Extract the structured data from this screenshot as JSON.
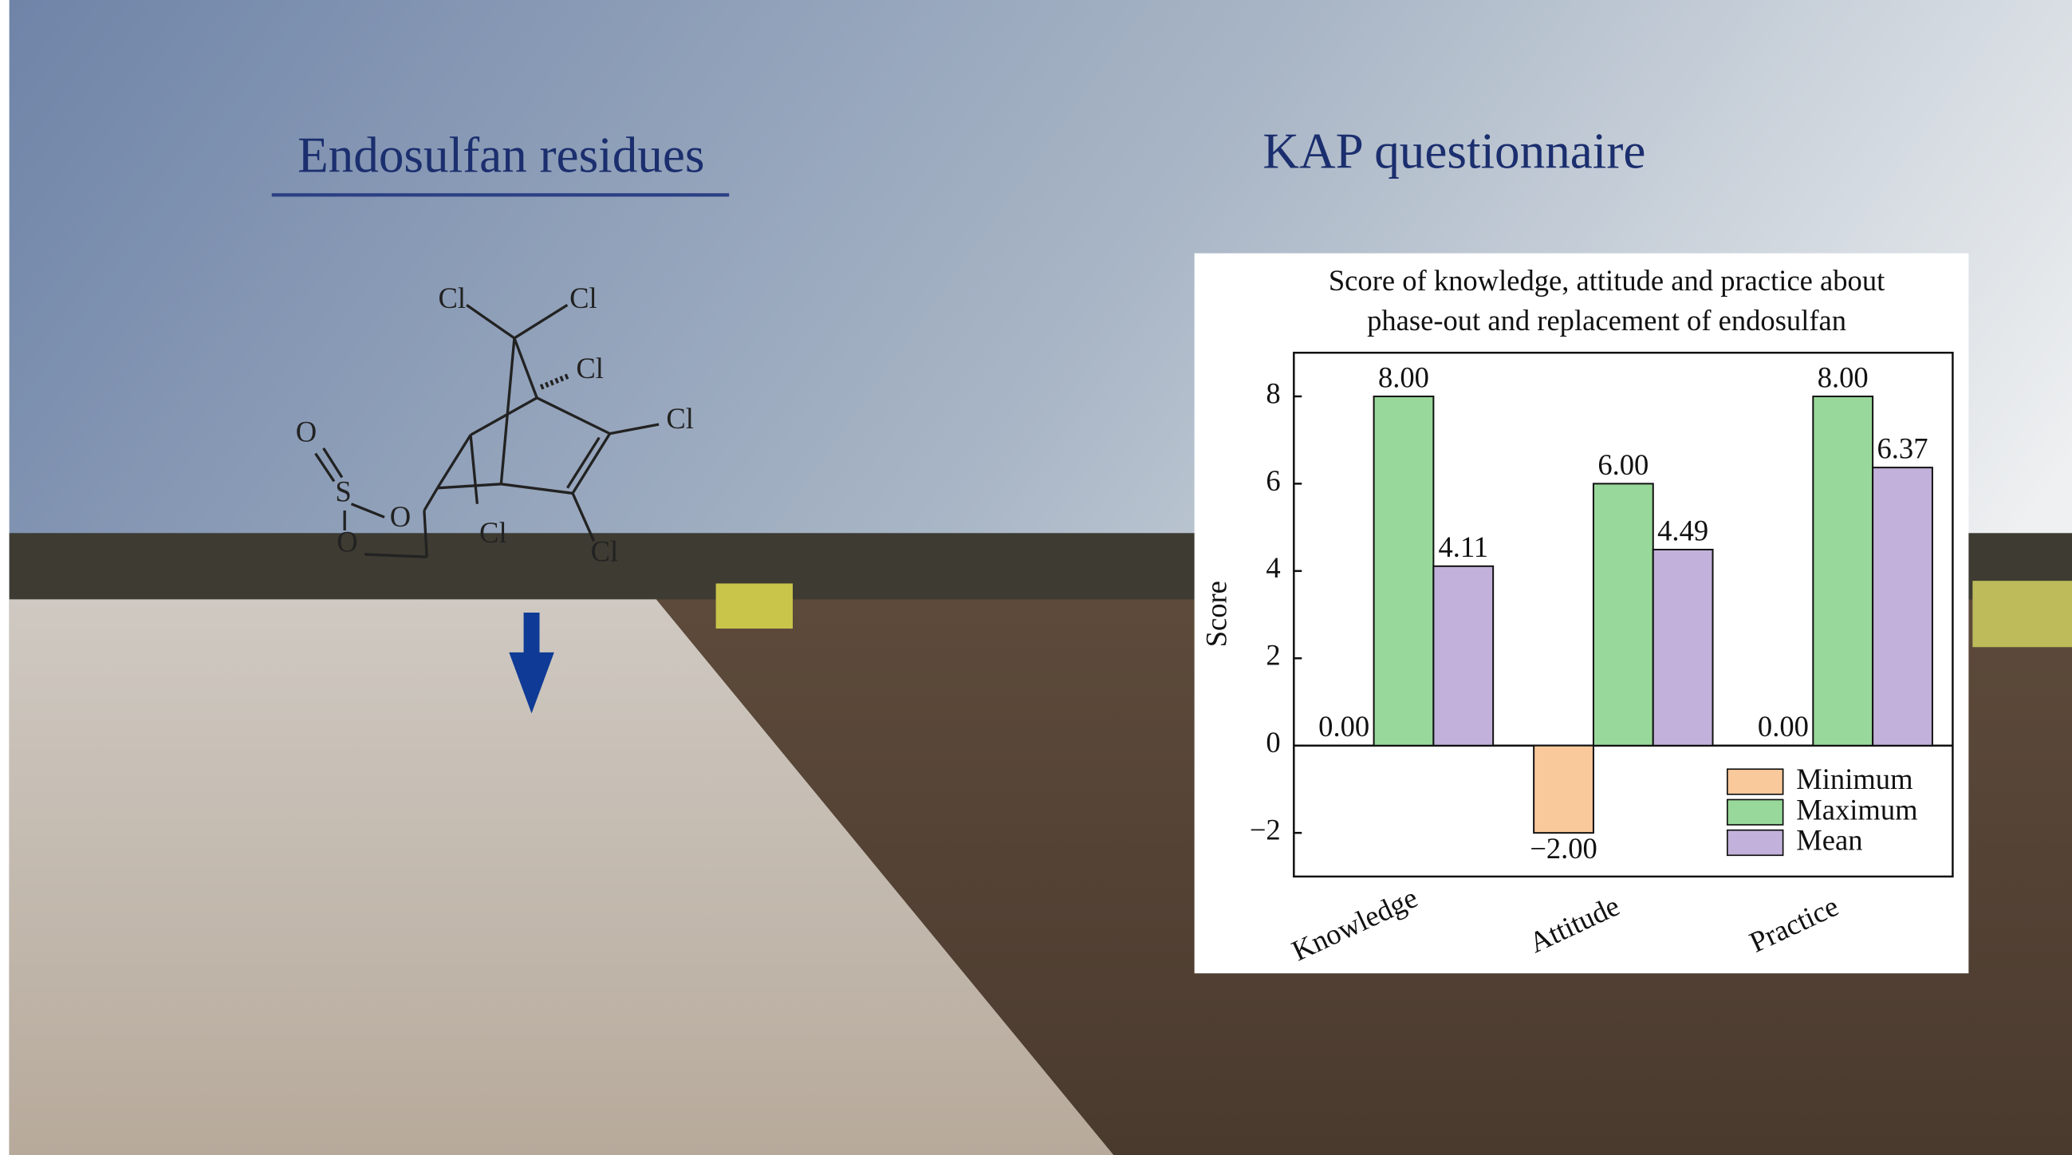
{
  "headings": {
    "left": "Endosulfan residues",
    "right": "KAP questionnaire"
  },
  "molecule": {
    "atoms": [
      "Cl",
      "Cl",
      "Cl",
      "Cl",
      "Cl",
      "Cl",
      "O",
      "S",
      "O",
      "O"
    ]
  },
  "chart_data": {
    "type": "bar",
    "title": [
      "Score of knowledge, attitude and practice about",
      "phase-out and replacement of endosulfan"
    ],
    "y_label": "Score",
    "categories": [
      "Knowledge",
      "Attitude",
      "Practice"
    ],
    "series": [
      {
        "name": "Minimum",
        "color": "#f9c89b",
        "values": [
          0,
          -2,
          0
        ],
        "value_labels": [
          "0.00",
          "−2.00",
          "0.00"
        ]
      },
      {
        "name": "Maximum",
        "color": "#98d89a",
        "values": [
          8,
          6,
          8
        ],
        "value_labels": [
          "8.00",
          "6.00",
          "8.00"
        ]
      },
      {
        "name": "Mean",
        "color": "#c2b1da",
        "values": [
          4.11,
          4.49,
          6.37
        ],
        "value_labels": [
          "4.11",
          "4.49",
          "6.37"
        ]
      }
    ],
    "ylim": [
      -3,
      9
    ],
    "yticks": [
      {
        "value": -2,
        "label": "−2"
      },
      0,
      2,
      4,
      6,
      8
    ],
    "legend": "lower right"
  }
}
